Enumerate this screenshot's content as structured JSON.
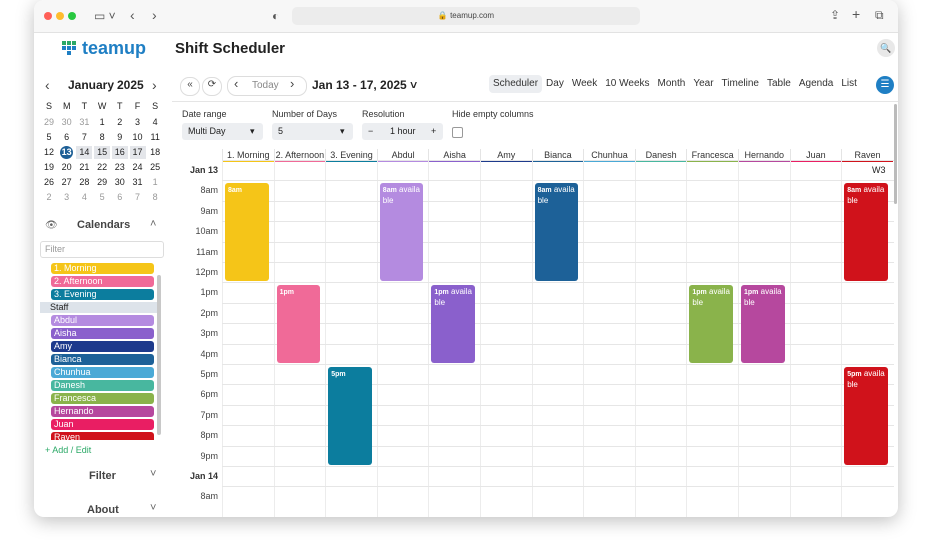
{
  "browser": {
    "url": "teamup.com"
  },
  "header": {
    "logo": "teamup",
    "title": "Shift Scheduler"
  },
  "mini_calendar": {
    "month": "January",
    "year": "2025",
    "weekdays": [
      "S",
      "M",
      "T",
      "W",
      "T",
      "F",
      "S"
    ],
    "weeks": [
      [
        29,
        30,
        31,
        1,
        2,
        3,
        4
      ],
      [
        5,
        6,
        7,
        8,
        9,
        10,
        11
      ],
      [
        12,
        13,
        14,
        15,
        16,
        17,
        18
      ],
      [
        19,
        20,
        21,
        22,
        23,
        24,
        25
      ],
      [
        26,
        27,
        28,
        29,
        30,
        31,
        1
      ],
      [
        2,
        3,
        4,
        5,
        6,
        7,
        8
      ]
    ]
  },
  "calendars": {
    "heading": "Calendars",
    "filter_placeholder": "Filter",
    "items": [
      {
        "name": "1. Morning",
        "color": "#f5c518"
      },
      {
        "name": "2. Afternoon",
        "color": "#f06a98"
      },
      {
        "name": "3. Evening",
        "color": "#0c7d9e"
      },
      {
        "group": "Staff"
      },
      {
        "name": "Abdul",
        "color": "#b48be0"
      },
      {
        "name": "Aisha",
        "color": "#8a60cc"
      },
      {
        "name": "Amy",
        "color": "#1d3a8c"
      },
      {
        "name": "Bianca",
        "color": "#1d6198"
      },
      {
        "name": "Chunhua",
        "color": "#4aa9d6"
      },
      {
        "name": "Danesh",
        "color": "#48b79f"
      },
      {
        "name": "Francesca",
        "color": "#8ab34b"
      },
      {
        "name": "Hernando",
        "color": "#b6489e"
      },
      {
        "name": "Juan",
        "color": "#e91e63"
      },
      {
        "name": "Raven",
        "color": "#d0121b"
      }
    ],
    "add_edit": "Add / Edit"
  },
  "sections": [
    "Filter",
    "About"
  ],
  "toolbar": {
    "today": "Today",
    "range": "Jan 13 - 17, 2025",
    "views": [
      "Scheduler",
      "Day",
      "Week",
      "10 Weeks",
      "Month",
      "Year",
      "Timeline",
      "Table",
      "Agenda",
      "List"
    ],
    "active_view": "Scheduler"
  },
  "options": [
    {
      "label": "Date range",
      "value": "Multi Day"
    },
    {
      "label": "Number of Days",
      "value": "5"
    },
    {
      "label": "Resolution",
      "value": "1 hour"
    },
    {
      "label": "Hide empty columns"
    }
  ],
  "grid": {
    "week": "W3",
    "rows": [
      "Jan 13",
      "8am",
      "9am",
      "10am",
      "11am",
      "12pm",
      "1pm",
      "2pm",
      "3pm",
      "4pm",
      "5pm",
      "6pm",
      "7pm",
      "8pm",
      "9pm",
      "Jan 14",
      "8am"
    ]
  },
  "events": [
    {
      "time": "8am"
    },
    {
      "time": "8am",
      "note": "available"
    },
    {
      "time": "8am",
      "note": "available"
    },
    {
      "time": "8am",
      "note": "available"
    },
    {
      "time": "1pm"
    },
    {
      "time": "1pm",
      "note": "available"
    },
    {
      "time": "1pm",
      "note": "available"
    },
    {
      "time": "1pm",
      "note": "available"
    },
    {
      "time": "5pm"
    },
    {
      "time": "5pm",
      "note": "available"
    }
  ]
}
